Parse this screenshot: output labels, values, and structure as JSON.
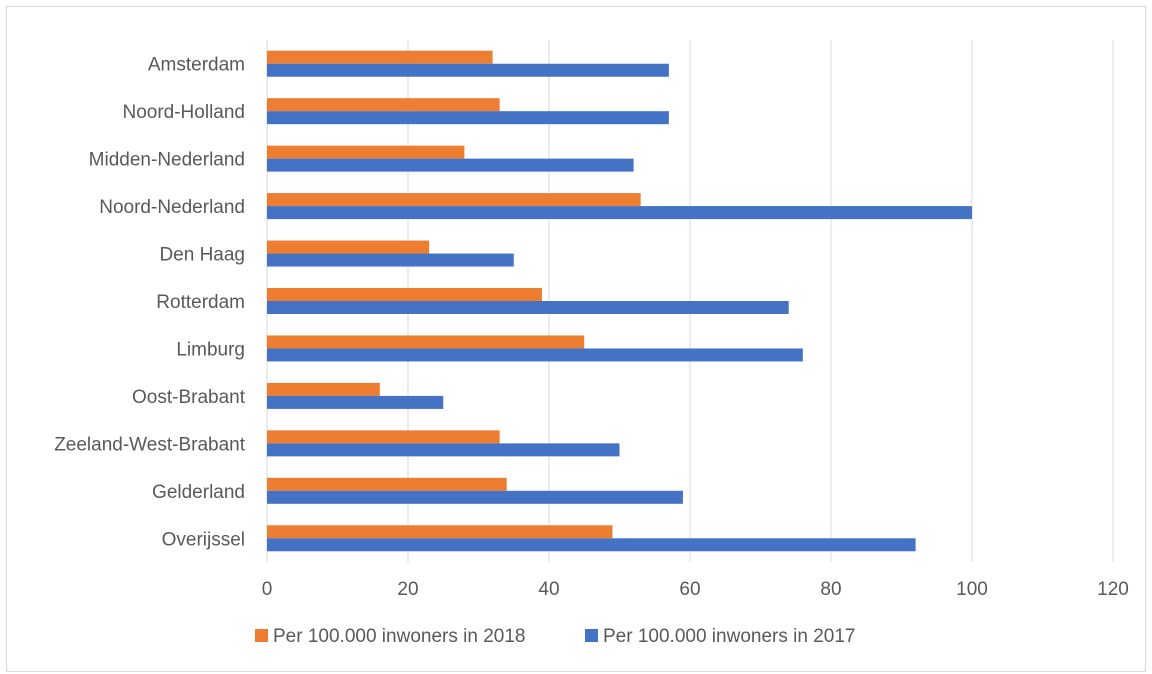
{
  "chart_data": {
    "type": "bar",
    "orientation": "horizontal",
    "categories": [
      "Amsterdam",
      "Noord-Holland",
      "Midden-Nederland",
      "Noord-Nederland",
      "Den Haag",
      "Rotterdam",
      "Limburg",
      "Oost-Brabant",
      "Zeeland-West-Brabant",
      "Gelderland",
      "Overijssel"
    ],
    "series": [
      {
        "name": "Per 100.000 inwoners in 2018",
        "color": "#ED7D31",
        "values": [
          32,
          33,
          28,
          53,
          23,
          39,
          45,
          16,
          33,
          34,
          49
        ]
      },
      {
        "name": "Per 100.000 inwoners in 2017",
        "color": "#4472C4",
        "values": [
          57,
          57,
          52,
          100,
          35,
          74,
          76,
          25,
          50,
          59,
          92
        ]
      }
    ],
    "xlim": [
      0,
      120
    ],
    "xticks": [
      "0",
      "20",
      "40",
      "60",
      "80",
      "100",
      "120"
    ],
    "grid": true,
    "legend_position": "bottom"
  }
}
